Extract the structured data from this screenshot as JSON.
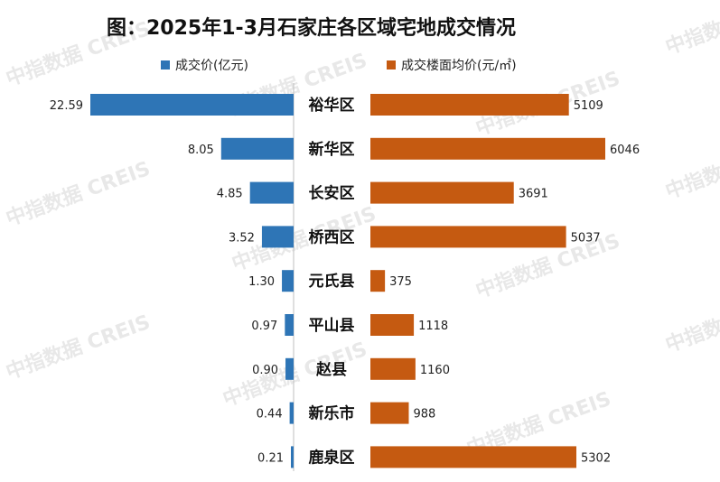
{
  "chart_data": {
    "type": "bar",
    "title": "图：2025年1-3月石家庄各区域宅地成交情况",
    "categories": [
      "裕华区",
      "新华区",
      "长安区",
      "桥西区",
      "元氏县",
      "平山县",
      "赵县",
      "新乐市",
      "鹿泉区"
    ],
    "series": [
      {
        "name": "成交价(亿元)",
        "color": "#2e75b6",
        "values": [
          22.59,
          8.05,
          4.85,
          3.52,
          1.3,
          0.97,
          0.9,
          0.44,
          0.21
        ],
        "labels": [
          "22.59",
          "8.05",
          "4.85",
          "3.52",
          "1.30",
          "0.97",
          "0.90",
          "0.44",
          "0.21"
        ]
      },
      {
        "name": "成交楼面均价(元/㎡)",
        "color": "#c55a11",
        "values": [
          5109,
          6046,
          3691,
          5037,
          375,
          1118,
          1160,
          988,
          5302
        ],
        "labels": [
          "5109",
          "6046",
          "3691",
          "5037",
          "375",
          "1118",
          "1160",
          "988",
          "5302"
        ]
      }
    ],
    "legend": "top",
    "watermark": "中指数据 CREIS"
  }
}
